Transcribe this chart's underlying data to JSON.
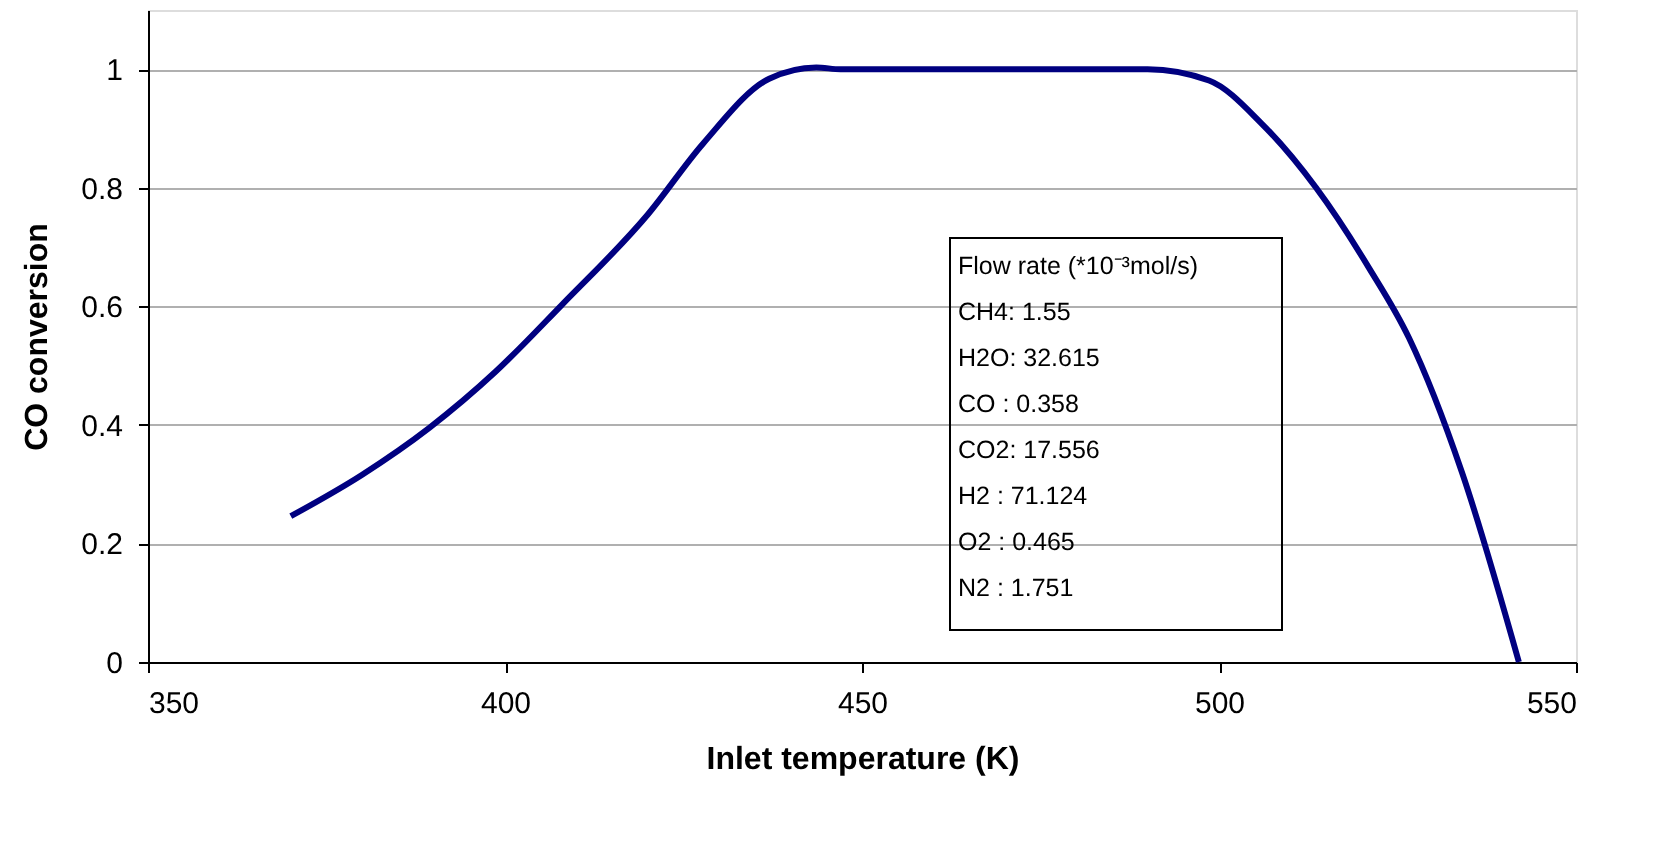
{
  "chart_data": {
    "type": "line",
    "xlabel": "Inlet temperature (K)",
    "ylabel": "CO conversion",
    "x": [
      370,
      380,
      389.4,
      398.7,
      408,
      420,
      427.7,
      437,
      443.6,
      447,
      470,
      490,
      498.6,
      506,
      513.6,
      521,
      526.6,
      534,
      542
    ],
    "series": [
      {
        "color": "#000080",
        "values": [
          0.246,
          0.316,
          0.395,
          0.49,
          0.603,
          0.755,
          0.874,
          0.984,
          1.003,
          1.0,
          1.0,
          1.0,
          0.981,
          0.908,
          0.8,
          0.665,
          0.547,
          0.321,
          0
        ]
      }
    ],
    "xlim": [
      350,
      550
    ],
    "xticks": [
      350,
      400,
      450,
      500,
      550
    ],
    "ylim": [
      0,
      1.1
    ],
    "yticks": [
      0,
      0.2,
      0.4,
      0.6,
      0.8,
      1
    ],
    "grid": "y",
    "marker": "none",
    "line_style": "solid",
    "annotations": [
      "Flow  rate (*10⁻³mol/s)",
      "CH4: 1.55",
      "H2O: 32.615",
      "CO  : 0.358",
      "CO2: 17.556",
      "H2   : 71.124",
      "O2   : 0.465",
      "N2   : 1.751"
    ]
  }
}
